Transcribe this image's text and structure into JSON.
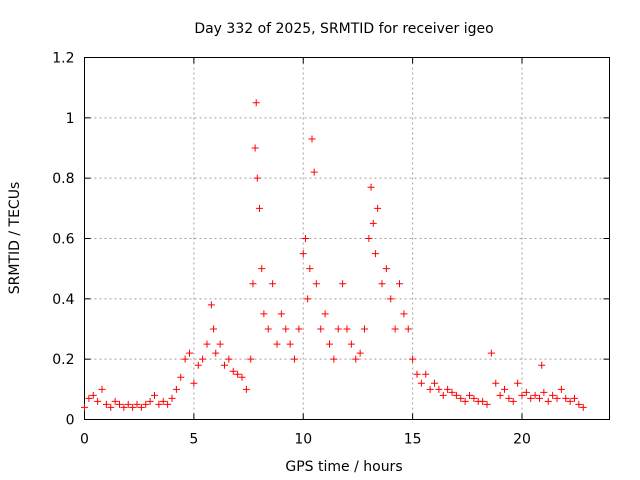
{
  "chart_data": {
    "type": "scatter",
    "title": "Day 332 of 2025, SRMTID for receiver igeo",
    "xlabel": "GPS time / hours",
    "ylabel": "SRMTID / TECUs",
    "xlim": [
      0,
      24
    ],
    "ylim": [
      0,
      1.2
    ],
    "xticks": [
      0,
      5,
      10,
      15,
      20
    ],
    "yticks": [
      0,
      0.2,
      0.4,
      0.6,
      0.8,
      1,
      1.2
    ],
    "xtick_labels": [
      "0",
      "5",
      "10",
      "15",
      "20"
    ],
    "ytick_labels": [
      "0",
      "0.2",
      "0.4",
      "0.6",
      "0.8",
      "1",
      "1.2"
    ],
    "grid": true,
    "marker": "+",
    "series": [
      {
        "name": "SRMTID",
        "color": "#ff0000",
        "x": [
          0.0,
          0.2,
          0.4,
          0.6,
          0.8,
          1.0,
          1.2,
          1.4,
          1.6,
          1.8,
          2.0,
          2.2,
          2.4,
          2.6,
          2.8,
          3.0,
          3.2,
          3.4,
          3.6,
          3.8,
          4.0,
          4.2,
          4.4,
          4.6,
          4.8,
          5.0,
          5.2,
          5.4,
          5.6,
          5.8,
          5.9,
          6.0,
          6.2,
          6.4,
          6.6,
          6.8,
          7.0,
          7.2,
          7.4,
          7.6,
          7.7,
          7.8,
          7.85,
          7.9,
          8.0,
          8.1,
          8.2,
          8.4,
          8.6,
          8.8,
          9.0,
          9.2,
          9.4,
          9.6,
          9.8,
          10.0,
          10.1,
          10.2,
          10.3,
          10.4,
          10.5,
          10.6,
          10.8,
          11.0,
          11.2,
          11.4,
          11.6,
          11.8,
          12.0,
          12.2,
          12.4,
          12.6,
          12.8,
          13.0,
          13.1,
          13.2,
          13.3,
          13.4,
          13.6,
          13.8,
          14.0,
          14.2,
          14.4,
          14.6,
          14.8,
          15.0,
          15.2,
          15.4,
          15.6,
          15.8,
          16.0,
          16.2,
          16.4,
          16.6,
          16.8,
          17.0,
          17.2,
          17.4,
          17.6,
          17.8,
          18.0,
          18.2,
          18.4,
          18.6,
          18.8,
          19.0,
          19.2,
          19.4,
          19.6,
          19.8,
          20.0,
          20.2,
          20.4,
          20.6,
          20.8,
          20.9,
          21.0,
          21.2,
          21.4,
          21.6,
          21.8,
          22.0,
          22.2,
          22.4,
          22.6,
          22.8
        ],
        "y": [
          0.04,
          0.07,
          0.08,
          0.06,
          0.1,
          0.05,
          0.04,
          0.06,
          0.05,
          0.04,
          0.05,
          0.04,
          0.05,
          0.04,
          0.05,
          0.06,
          0.08,
          0.05,
          0.06,
          0.05,
          0.07,
          0.1,
          0.14,
          0.2,
          0.22,
          0.12,
          0.18,
          0.2,
          0.25,
          0.38,
          0.3,
          0.22,
          0.25,
          0.18,
          0.2,
          0.16,
          0.15,
          0.14,
          0.1,
          0.2,
          0.45,
          0.9,
          1.05,
          0.8,
          0.7,
          0.5,
          0.35,
          0.3,
          0.45,
          0.25,
          0.35,
          0.3,
          0.25,
          0.2,
          0.3,
          0.55,
          0.6,
          0.4,
          0.5,
          0.93,
          0.82,
          0.45,
          0.3,
          0.35,
          0.25,
          0.2,
          0.3,
          0.45,
          0.3,
          0.25,
          0.2,
          0.22,
          0.3,
          0.6,
          0.77,
          0.65,
          0.55,
          0.7,
          0.45,
          0.5,
          0.4,
          0.3,
          0.45,
          0.35,
          0.3,
          0.2,
          0.15,
          0.12,
          0.15,
          0.1,
          0.12,
          0.1,
          0.08,
          0.1,
          0.09,
          0.08,
          0.07,
          0.06,
          0.08,
          0.07,
          0.06,
          0.06,
          0.05,
          0.22,
          0.12,
          0.08,
          0.1,
          0.07,
          0.06,
          0.12,
          0.08,
          0.09,
          0.07,
          0.08,
          0.07,
          0.18,
          0.09,
          0.06,
          0.08,
          0.07,
          0.1,
          0.07,
          0.06,
          0.07,
          0.05,
          0.04
        ]
      }
    ]
  }
}
